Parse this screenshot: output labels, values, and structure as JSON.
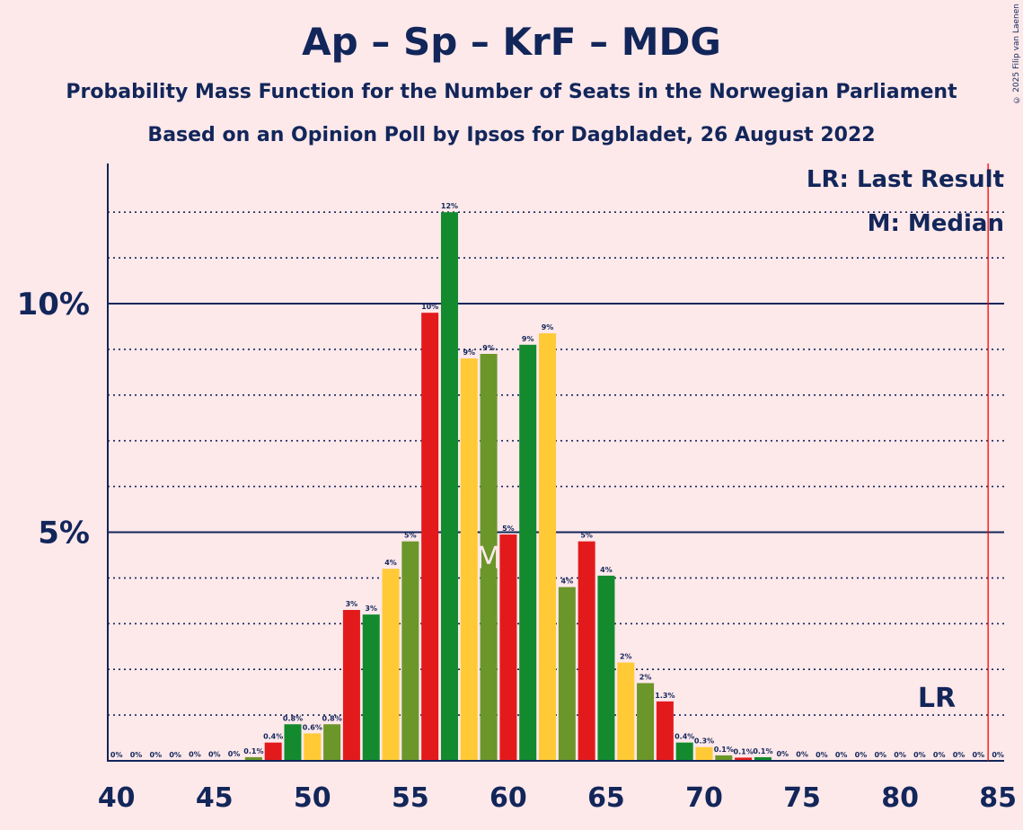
{
  "title": "Ap – Sp – KrF – MDG",
  "subtitle": "Probability Mass Function for the Number of Seats in the Norwegian Parliament",
  "subtitle2": "Based on an Opinion Poll by Ipsos for Dagbladet, 26 August 2022",
  "copyright": "© 2025 Filip van Laenen",
  "legend": {
    "lr": "LR: Last Result",
    "m": "M: Median"
  },
  "markers": {
    "median_label": "M",
    "median_seat": 59,
    "last_result_label": "LR",
    "last_result_seat": 85
  },
  "colors": {
    "red": "#e31a1c",
    "green": "#138a2e",
    "yellow": "#ffca36",
    "olive": "#6b962a",
    "axis": "#12265a",
    "background": "#fde8ea",
    "lr_line": "#ff0000"
  },
  "chart_data": {
    "type": "bar",
    "xlim": [
      40,
      85
    ],
    "ylim": [
      0,
      13
    ],
    "ylabel_ticks": [
      "5%",
      "10%"
    ],
    "x_ticks": [
      40,
      45,
      50,
      55,
      60,
      65,
      70,
      75,
      80,
      85
    ],
    "color_cycle": [
      "red",
      "green",
      "yellow",
      "olive"
    ],
    "bars": [
      {
        "seats": 40,
        "value": 0,
        "label": "0%"
      },
      {
        "seats": 41,
        "value": 0,
        "label": "0%"
      },
      {
        "seats": 42,
        "value": 0,
        "label": "0%"
      },
      {
        "seats": 43,
        "value": 0,
        "label": "0%"
      },
      {
        "seats": 44,
        "value": 0.01,
        "label": "0%"
      },
      {
        "seats": 45,
        "value": 0.01,
        "label": "0%"
      },
      {
        "seats": 46,
        "value": 0.02,
        "label": "0%"
      },
      {
        "seats": 47,
        "value": 0.08,
        "label": "0.1%"
      },
      {
        "seats": 48,
        "value": 0.4,
        "label": "0.4%"
      },
      {
        "seats": 49,
        "value": 0.8,
        "label": "0.8%"
      },
      {
        "seats": 50,
        "value": 0.6,
        "label": "0.6%"
      },
      {
        "seats": 51,
        "value": 0.8,
        "label": "0.8%"
      },
      {
        "seats": 52,
        "value": 3.3,
        "label": "3%"
      },
      {
        "seats": 53,
        "value": 3.2,
        "label": "3%"
      },
      {
        "seats": 54,
        "value": 4.2,
        "label": "4%"
      },
      {
        "seats": 55,
        "value": 4.8,
        "label": "5%"
      },
      {
        "seats": 56,
        "value": 9.8,
        "label": "10%"
      },
      {
        "seats": 57,
        "value": 12.0,
        "label": "12%"
      },
      {
        "seats": 58,
        "value": 8.8,
        "label": "9%"
      },
      {
        "seats": 59,
        "value": 8.9,
        "label": "9%"
      },
      {
        "seats": 60,
        "value": 4.95,
        "label": "5%"
      },
      {
        "seats": 61,
        "value": 9.1,
        "label": "9%"
      },
      {
        "seats": 62,
        "value": 9.35,
        "label": "9%"
      },
      {
        "seats": 63,
        "value": 3.8,
        "label": "4%"
      },
      {
        "seats": 64,
        "value": 4.8,
        "label": "5%"
      },
      {
        "seats": 65,
        "value": 4.05,
        "label": "4%"
      },
      {
        "seats": 66,
        "value": 2.15,
        "label": "2%"
      },
      {
        "seats": 67,
        "value": 1.7,
        "label": "2%"
      },
      {
        "seats": 68,
        "value": 1.3,
        "label": "1.3%"
      },
      {
        "seats": 69,
        "value": 0.4,
        "label": "0.4%"
      },
      {
        "seats": 70,
        "value": 0.3,
        "label": "0.3%"
      },
      {
        "seats": 71,
        "value": 0.12,
        "label": "0.1%"
      },
      {
        "seats": 72,
        "value": 0.07,
        "label": "0.1%"
      },
      {
        "seats": 73,
        "value": 0.08,
        "label": "0.1%"
      },
      {
        "seats": 74,
        "value": 0.02,
        "label": "0%"
      },
      {
        "seats": 75,
        "value": 0.01,
        "label": "0%"
      },
      {
        "seats": 76,
        "value": 0,
        "label": "0%"
      },
      {
        "seats": 77,
        "value": 0,
        "label": "0%"
      },
      {
        "seats": 78,
        "value": 0,
        "label": "0%"
      },
      {
        "seats": 79,
        "value": 0,
        "label": "0%"
      },
      {
        "seats": 80,
        "value": 0,
        "label": "0%"
      },
      {
        "seats": 81,
        "value": 0,
        "label": "0%"
      },
      {
        "seats": 82,
        "value": 0,
        "label": "0%"
      },
      {
        "seats": 83,
        "value": 0,
        "label": "0%"
      },
      {
        "seats": 84,
        "value": 0,
        "label": "0%"
      },
      {
        "seats": 85,
        "value": 0,
        "label": "0%"
      }
    ]
  }
}
